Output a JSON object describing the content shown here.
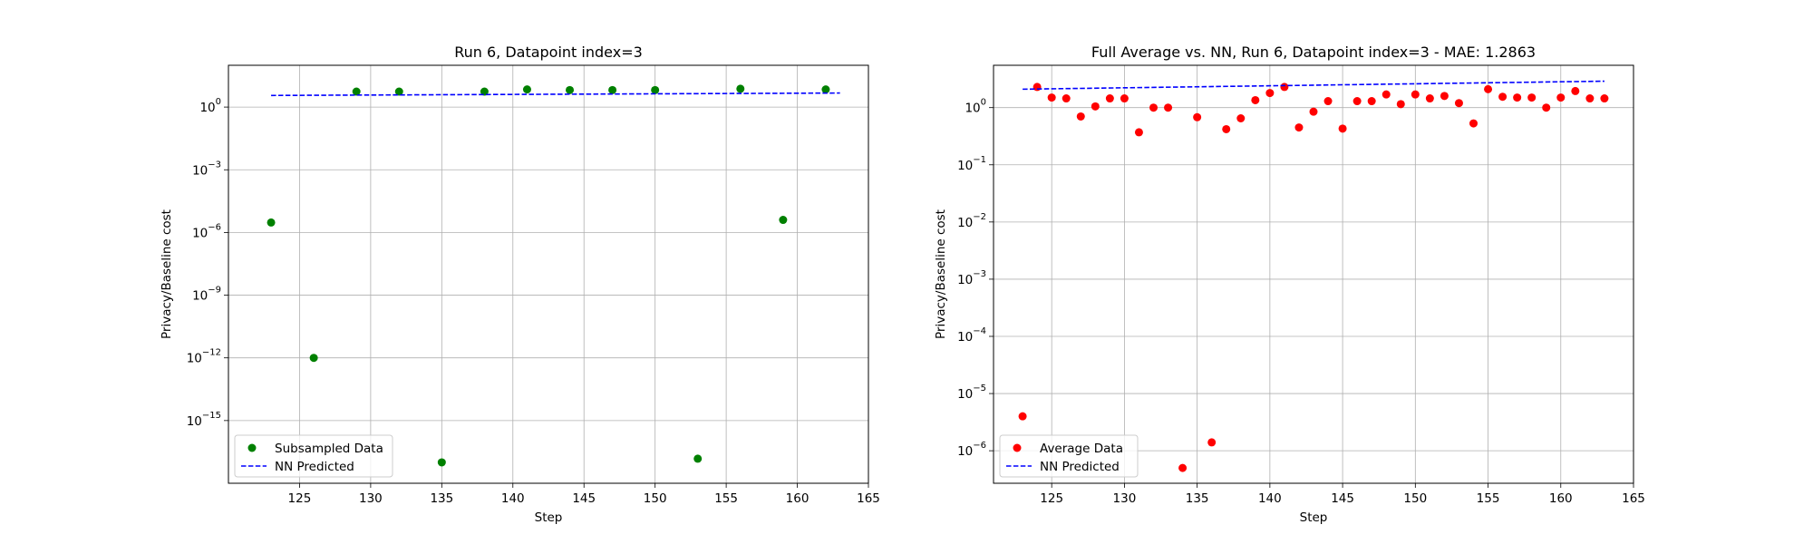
{
  "chart_data": [
    {
      "type": "scatter",
      "title": "Run 6, Datapoint index=3",
      "xlabel": "Step",
      "ylabel": "Privacy/Baseline cost",
      "xlim": [
        120,
        165
      ],
      "xticks": [
        125,
        130,
        135,
        140,
        145,
        150,
        155,
        160,
        165
      ],
      "ylim": [
        1e-18,
        100.0
      ],
      "yscale": "log",
      "yticks": [
        {
          "value": 1.0,
          "base": "10",
          "exp": "0"
        },
        {
          "value": 0.001,
          "base": "10",
          "exp": "−3"
        },
        {
          "value": 1e-06,
          "base": "10",
          "exp": "−6"
        },
        {
          "value": 1e-09,
          "base": "10",
          "exp": "−9"
        },
        {
          "value": 1e-12,
          "base": "10",
          "exp": "−12"
        },
        {
          "value": 1e-15,
          "base": "10",
          "exp": "−15"
        }
      ],
      "grid": true,
      "legend_position": "lower-left",
      "series": [
        {
          "name": "Subsampled Data",
          "style": "markers",
          "color": "#008000",
          "points": [
            [
              123,
              3e-06
            ],
            [
              126,
              1e-12
            ],
            [
              129,
              5.5
            ],
            [
              132,
              5.5
            ],
            [
              135,
              1e-17
            ],
            [
              138,
              5.5
            ],
            [
              141,
              7
            ],
            [
              144,
              6.5
            ],
            [
              147,
              6.5
            ],
            [
              150,
              6.5
            ],
            [
              153,
              1.5e-17
            ],
            [
              156,
              7.5
            ],
            [
              159,
              4e-06
            ],
            [
              162,
              7
            ]
          ]
        },
        {
          "name": "NN Predicted",
          "style": "dashed-line",
          "color": "#0000ff",
          "points": [
            [
              123,
              3.6
            ],
            [
              163,
              4.7
            ]
          ]
        }
      ]
    },
    {
      "type": "scatter",
      "title": "Full Average vs. NN, Run 6, Datapoint index=3 - MAE: 1.2863",
      "xlabel": "Step",
      "ylabel": "Privacy/Baseline cost",
      "xlim": [
        121,
        165
      ],
      "xticks": [
        125,
        130,
        135,
        140,
        145,
        150,
        155,
        160,
        165
      ],
      "ylim": [
        2.7e-07,
        5.5
      ],
      "yscale": "log",
      "yticks": [
        {
          "value": 1.0,
          "base": "10",
          "exp": "0"
        },
        {
          "value": 0.1,
          "base": "10",
          "exp": "−1"
        },
        {
          "value": 0.01,
          "base": "10",
          "exp": "−2"
        },
        {
          "value": 0.001,
          "base": "10",
          "exp": "−3"
        },
        {
          "value": 0.0001,
          "base": "10",
          "exp": "−4"
        },
        {
          "value": 1e-05,
          "base": "10",
          "exp": "−5"
        },
        {
          "value": 1e-06,
          "base": "10",
          "exp": "−6"
        }
      ],
      "grid": true,
      "legend_position": "lower-left",
      "series": [
        {
          "name": "Average Data",
          "style": "markers",
          "color": "#ff0000",
          "points": [
            [
              123,
              4e-06
            ],
            [
              124,
              2.3
            ],
            [
              125,
              1.5
            ],
            [
              126,
              1.45
            ],
            [
              127,
              0.7
            ],
            [
              128,
              1.05
            ],
            [
              129,
              1.45
            ],
            [
              130,
              1.45
            ],
            [
              131,
              0.37
            ],
            [
              132,
              1.0
            ],
            [
              133,
              1.0
            ],
            [
              134,
              5e-07
            ],
            [
              135,
              0.68
            ],
            [
              136,
              1.4e-06
            ],
            [
              137,
              0.42
            ],
            [
              138,
              0.65
            ],
            [
              139,
              1.35
            ],
            [
              140,
              1.8
            ],
            [
              141,
              2.3
            ],
            [
              142,
              0.45
            ],
            [
              143,
              0.85
            ],
            [
              144,
              1.3
            ],
            [
              145,
              0.43
            ],
            [
              146,
              1.3
            ],
            [
              147,
              1.3
            ],
            [
              148,
              1.7
            ],
            [
              149,
              1.15
            ],
            [
              150,
              1.7
            ],
            [
              151,
              1.45
            ],
            [
              152,
              1.6
            ],
            [
              153,
              1.2
            ],
            [
              154,
              0.53
            ],
            [
              155,
              2.1
            ],
            [
              156,
              1.55
            ],
            [
              157,
              1.5
            ],
            [
              158,
              1.5
            ],
            [
              159,
              1.0
            ],
            [
              160,
              1.5
            ],
            [
              161,
              1.95
            ],
            [
              162,
              1.45
            ],
            [
              163,
              1.45
            ]
          ]
        },
        {
          "name": "NN Predicted",
          "style": "dashed-line",
          "color": "#0000ff",
          "points": [
            [
              123,
              2.1
            ],
            [
              163,
              2.9
            ]
          ]
        }
      ]
    }
  ]
}
